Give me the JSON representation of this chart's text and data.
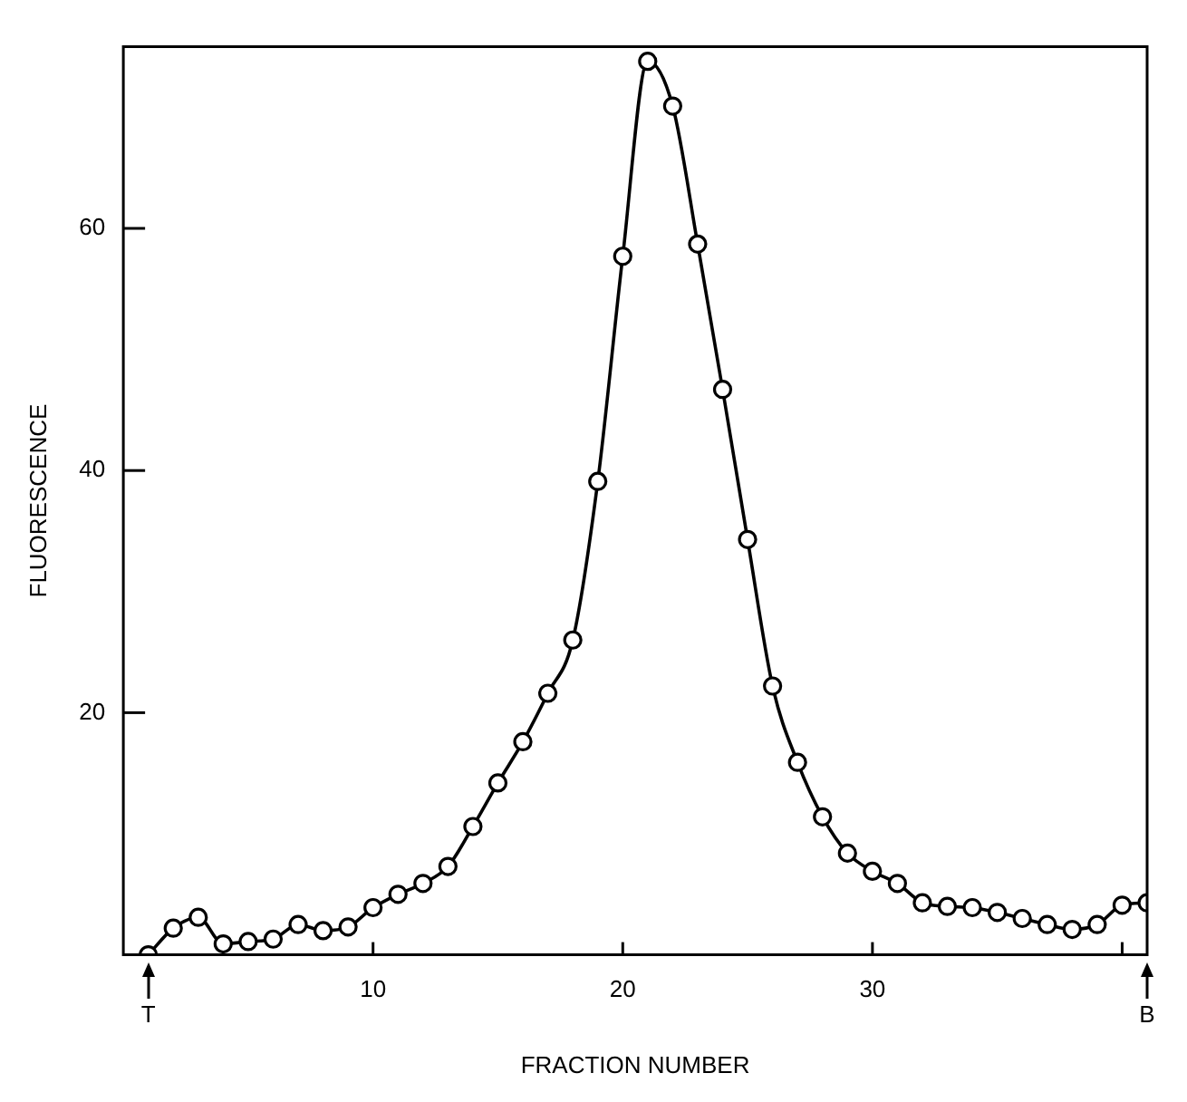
{
  "chart_data": {
    "type": "line",
    "xlabel": "FRACTION NUMBER",
    "ylabel": "FLUORESCENCE",
    "x": [
      1,
      2,
      3,
      4,
      5,
      6,
      7,
      8,
      9,
      10,
      11,
      12,
      13,
      14,
      15,
      16,
      17,
      18,
      19,
      20,
      21,
      22,
      23,
      24,
      25,
      26,
      27,
      28,
      29,
      30,
      31,
      32,
      33,
      34,
      35,
      36,
      37,
      38,
      39,
      40,
      41
    ],
    "series": [
      {
        "color": "#000000",
        "values": [
          0,
          2.2,
          3.1,
          0.9,
          1.1,
          1.3,
          2.5,
          2.0,
          2.3,
          3.9,
          5.0,
          5.9,
          7.3,
          10.6,
          14.2,
          17.6,
          21.6,
          26.0,
          39.1,
          57.7,
          73.8,
          70.1,
          58.7,
          46.7,
          34.3,
          22.2,
          15.9,
          11.4,
          8.4,
          6.9,
          5.9,
          4.3,
          4.0,
          3.9,
          3.5,
          3.0,
          2.5,
          2.1,
          2.5,
          4.1,
          4.3
        ]
      }
    ],
    "xlim": [
      0,
      41
    ],
    "xticks": [
      10,
      20,
      30,
      {
        "value": 40,
        "label": null
      }
    ],
    "ylim": [
      0,
      75
    ],
    "yticks": [
      20,
      40,
      60
    ],
    "annotations": [
      "T",
      "B"
    ],
    "marker": "circle",
    "line_style": "solid",
    "grid": false,
    "legend": false
  }
}
